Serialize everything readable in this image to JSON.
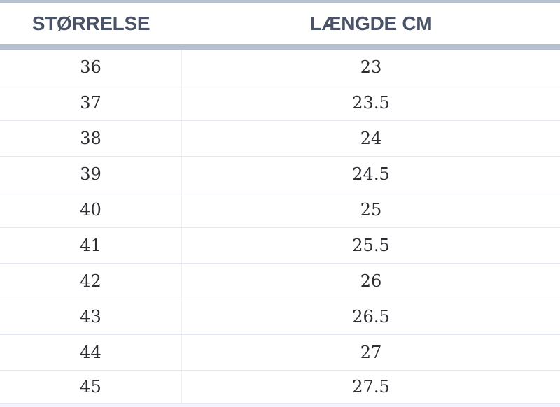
{
  "table": {
    "headers": [
      "STØRRELSE",
      "LÆNGDE CM"
    ],
    "rows": [
      [
        "36",
        "23"
      ],
      [
        "37",
        "23.5"
      ],
      [
        "38",
        "24"
      ],
      [
        "39",
        "24.5"
      ],
      [
        "40",
        "25"
      ],
      [
        "41",
        "25.5"
      ],
      [
        "42",
        "26"
      ],
      [
        "43",
        "26.5"
      ],
      [
        "44",
        "27"
      ],
      [
        "45",
        "27.5"
      ]
    ]
  },
  "colors": {
    "accent_bar": "#b5bfcd",
    "header_text": "#4a5366",
    "body_text": "#2e2d33",
    "row_border": "#e3e8f4",
    "column_border": "#edf1fa",
    "footer_strip": "#f2f3fc",
    "background": "#ffffff"
  },
  "chart_data": {
    "type": "table",
    "title": "",
    "columns": [
      "STØRRELSE",
      "LÆNGDE CM"
    ],
    "rows": [
      [
        36,
        23
      ],
      [
        37,
        23.5
      ],
      [
        38,
        24
      ],
      [
        39,
        24.5
      ],
      [
        40,
        25
      ],
      [
        41,
        25.5
      ],
      [
        42,
        26
      ],
      [
        43,
        26.5
      ],
      [
        44,
        27
      ],
      [
        45,
        27.5
      ]
    ]
  }
}
